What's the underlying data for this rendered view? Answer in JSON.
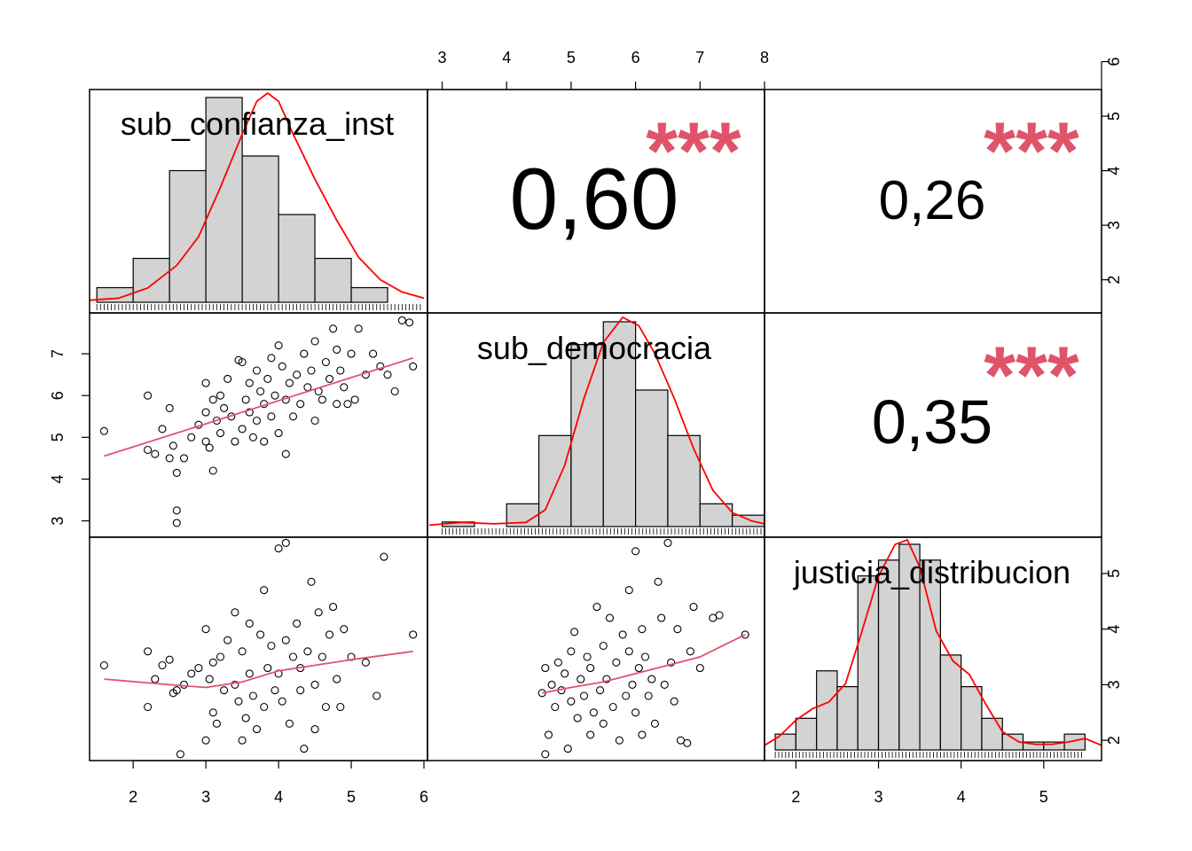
{
  "colors": {
    "density": "#ff0000",
    "stars": "#df536b",
    "smooth": "#df536b",
    "bar_fill": "#d3d3d3"
  },
  "chart_data": {
    "type": "scatter-matrix",
    "variables": [
      "sub_confianza_inst",
      "sub_democracia",
      "justicia_distribucion"
    ],
    "correlations": [
      {
        "pair": [
          "sub_confianza_inst",
          "sub_democracia"
        ],
        "label": "0,60",
        "stars": "***"
      },
      {
        "pair": [
          "sub_confianza_inst",
          "justicia_distribucion"
        ],
        "label": "0,26",
        "stars": "***"
      },
      {
        "pair": [
          "sub_democracia",
          "justicia_distribucion"
        ],
        "label": "0,35",
        "stars": "***"
      }
    ],
    "axes": {
      "sub_confianza_inst": {
        "range": [
          1.4,
          6.0
        ],
        "ticks": [
          "2",
          "3",
          "4",
          "5",
          "6"
        ]
      },
      "sub_democracia": {
        "range": [
          2.8,
          8.0
        ],
        "ticks": [
          "3",
          "4",
          "5",
          "6",
          "7",
          "8"
        ]
      },
      "justicia_distribucion": {
        "range": [
          1.62,
          5.7
        ],
        "ticks": [
          "2",
          "3",
          "4",
          "5"
        ]
      }
    },
    "histograms": {
      "sub_confianza_inst": {
        "breaks": [
          1.5,
          2.0,
          2.5,
          3.0,
          3.5,
          4.0,
          4.5,
          5.0,
          5.5,
          6.0
        ],
        "counts": [
          1,
          3,
          9,
          14,
          10,
          6,
          3,
          1,
          0
        ],
        "density": [
          [
            1.4,
            0.05
          ],
          [
            1.8,
            0.1
          ],
          [
            2.2,
            0.35
          ],
          [
            2.6,
            0.9
          ],
          [
            2.9,
            1.6
          ],
          [
            3.2,
            2.8
          ],
          [
            3.5,
            4.1
          ],
          [
            3.7,
            4.9
          ],
          [
            3.85,
            5.1
          ],
          [
            4.0,
            4.9
          ],
          [
            4.2,
            4.1
          ],
          [
            4.5,
            3.0
          ],
          [
            4.8,
            2.0
          ],
          [
            5.1,
            1.1
          ],
          [
            5.4,
            0.55
          ],
          [
            5.7,
            0.25
          ],
          [
            6.0,
            0.1
          ]
        ]
      },
      "sub_democracia": {
        "breaks": [
          3.0,
          3.5,
          4.0,
          4.5,
          5.0,
          5.5,
          6.0,
          6.5,
          7.0,
          7.5,
          8.0
        ],
        "counts": [
          0.2,
          0,
          1,
          4,
          8,
          9,
          6,
          4,
          1,
          0.5
        ],
        "density": [
          [
            2.8,
            0.05
          ],
          [
            3.3,
            0.15
          ],
          [
            3.8,
            0.1
          ],
          [
            4.3,
            0.15
          ],
          [
            4.6,
            0.6
          ],
          [
            4.9,
            2.2
          ],
          [
            5.2,
            4.6
          ],
          [
            5.5,
            6.6
          ],
          [
            5.8,
            7.5
          ],
          [
            6.05,
            7.2
          ],
          [
            6.3,
            6.2
          ],
          [
            6.6,
            4.6
          ],
          [
            6.9,
            2.8
          ],
          [
            7.2,
            1.3
          ],
          [
            7.5,
            0.5
          ],
          [
            7.8,
            0.2
          ],
          [
            8.0,
            0.1
          ]
        ]
      },
      "justicia_distribucion": {
        "breaks": [
          1.75,
          2.0,
          2.25,
          2.5,
          2.75,
          3.0,
          3.25,
          3.5,
          3.75,
          4.0,
          4.25,
          4.5,
          4.75,
          5.0,
          5.25,
          5.5
        ],
        "counts": [
          1,
          2,
          5,
          4,
          11,
          12,
          13,
          12,
          6,
          4,
          2,
          1,
          0.5,
          0.5,
          1
        ],
        "density": [
          [
            1.62,
            0.2
          ],
          [
            1.8,
            0.6
          ],
          [
            2.0,
            1.3
          ],
          [
            2.2,
            1.8
          ],
          [
            2.4,
            2.1
          ],
          [
            2.6,
            2.9
          ],
          [
            2.8,
            5.2
          ],
          [
            3.0,
            7.6
          ],
          [
            3.2,
            9.0
          ],
          [
            3.35,
            9.2
          ],
          [
            3.5,
            8.0
          ],
          [
            3.7,
            5.2
          ],
          [
            3.9,
            3.9
          ],
          [
            4.1,
            3.3
          ],
          [
            4.3,
            2.0
          ],
          [
            4.5,
            0.8
          ],
          [
            4.7,
            0.35
          ],
          [
            4.9,
            0.25
          ],
          [
            5.1,
            0.25
          ],
          [
            5.3,
            0.35
          ],
          [
            5.5,
            0.5
          ],
          [
            5.7,
            0.2
          ]
        ]
      }
    },
    "scatter": {
      "confianza_vs_democracia": [
        [
          1.6,
          5.15
        ],
        [
          2.2,
          6.0
        ],
        [
          2.2,
          4.7
        ],
        [
          2.3,
          4.6
        ],
        [
          2.4,
          5.2
        ],
        [
          2.5,
          4.5
        ],
        [
          2.5,
          5.7
        ],
        [
          2.55,
          4.8
        ],
        [
          2.6,
          4.15
        ],
        [
          2.6,
          3.25
        ],
        [
          2.6,
          2.95
        ],
        [
          2.7,
          4.5
        ],
        [
          2.8,
          5.0
        ],
        [
          2.9,
          5.3
        ],
        [
          3.0,
          4.9
        ],
        [
          3.0,
          5.6
        ],
        [
          3.0,
          6.3
        ],
        [
          3.05,
          4.75
        ],
        [
          3.1,
          5.9
        ],
        [
          3.1,
          4.2
        ],
        [
          3.15,
          5.4
        ],
        [
          3.2,
          5.1
        ],
        [
          3.2,
          6.0
        ],
        [
          3.25,
          5.7
        ],
        [
          3.3,
          6.4
        ],
        [
          3.35,
          5.5
        ],
        [
          3.4,
          4.9
        ],
        [
          3.45,
          6.85
        ],
        [
          3.5,
          6.8
        ],
        [
          3.5,
          5.2
        ],
        [
          3.55,
          5.9
        ],
        [
          3.6,
          6.3
        ],
        [
          3.6,
          5.6
        ],
        [
          3.65,
          5.0
        ],
        [
          3.7,
          6.6
        ],
        [
          3.7,
          5.4
        ],
        [
          3.75,
          6.1
        ],
        [
          3.8,
          5.8
        ],
        [
          3.8,
          4.9
        ],
        [
          3.85,
          6.4
        ],
        [
          3.9,
          5.5
        ],
        [
          3.9,
          6.9
        ],
        [
          3.95,
          6.0
        ],
        [
          4.0,
          5.1
        ],
        [
          4.0,
          7.2
        ],
        [
          4.05,
          6.7
        ],
        [
          4.1,
          5.9
        ],
        [
          4.1,
          4.6
        ],
        [
          4.15,
          6.3
        ],
        [
          4.2,
          5.5
        ],
        [
          4.25,
          6.5
        ],
        [
          4.3,
          5.8
        ],
        [
          4.35,
          7.0
        ],
        [
          4.4,
          6.2
        ],
        [
          4.45,
          6.6
        ],
        [
          4.5,
          5.4
        ],
        [
          4.5,
          7.3
        ],
        [
          4.55,
          6.1
        ],
        [
          4.6,
          5.9
        ],
        [
          4.65,
          6.8
        ],
        [
          4.7,
          6.4
        ],
        [
          4.75,
          7.6
        ],
        [
          4.8,
          5.8
        ],
        [
          4.8,
          7.1
        ],
        [
          4.85,
          6.6
        ],
        [
          4.9,
          6.2
        ],
        [
          4.95,
          5.8
        ],
        [
          5.0,
          7.0
        ],
        [
          5.05,
          5.9
        ],
        [
          5.1,
          7.6
        ],
        [
          5.2,
          6.5
        ],
        [
          5.3,
          7.0
        ],
        [
          5.4,
          6.7
        ],
        [
          5.5,
          6.5
        ],
        [
          5.6,
          6.1
        ],
        [
          5.7,
          7.8
        ],
        [
          5.8,
          7.75
        ],
        [
          5.85,
          6.7
        ]
      ],
      "confianza_vs_justicia": [
        [
          1.6,
          3.35
        ],
        [
          2.2,
          2.6
        ],
        [
          2.2,
          3.6
        ],
        [
          2.3,
          3.1
        ],
        [
          2.4,
          3.35
        ],
        [
          2.5,
          3.45
        ],
        [
          2.55,
          2.85
        ],
        [
          2.6,
          2.9
        ],
        [
          2.65,
          1.75
        ],
        [
          2.7,
          3.0
        ],
        [
          2.8,
          3.2
        ],
        [
          2.9,
          3.3
        ],
        [
          3.0,
          4.0
        ],
        [
          3.0,
          2.0
        ],
        [
          3.05,
          3.1
        ],
        [
          3.1,
          2.5
        ],
        [
          3.1,
          3.4
        ],
        [
          3.15,
          2.3
        ],
        [
          3.2,
          3.5
        ],
        [
          3.25,
          2.9
        ],
        [
          3.3,
          3.8
        ],
        [
          3.4,
          3.0
        ],
        [
          3.4,
          4.3
        ],
        [
          3.45,
          2.7
        ],
        [
          3.5,
          2.0
        ],
        [
          3.5,
          3.6
        ],
        [
          3.55,
          2.4
        ],
        [
          3.6,
          3.2
        ],
        [
          3.6,
          4.1
        ],
        [
          3.65,
          2.8
        ],
        [
          3.7,
          2.2
        ],
        [
          3.75,
          3.9
        ],
        [
          3.8,
          4.7
        ],
        [
          3.8,
          2.6
        ],
        [
          3.85,
          3.3
        ],
        [
          3.9,
          3.7
        ],
        [
          3.95,
          2.9
        ],
        [
          4.0,
          3.2
        ],
        [
          4.0,
          5.45
        ],
        [
          4.05,
          2.7
        ],
        [
          4.1,
          5.55
        ],
        [
          4.1,
          3.8
        ],
        [
          4.15,
          2.3
        ],
        [
          4.2,
          3.5
        ],
        [
          4.25,
          4.1
        ],
        [
          4.3,
          2.9
        ],
        [
          4.3,
          3.3
        ],
        [
          4.35,
          1.85
        ],
        [
          4.4,
          3.6
        ],
        [
          4.45,
          4.85
        ],
        [
          4.5,
          3.0
        ],
        [
          4.5,
          2.2
        ],
        [
          4.55,
          4.3
        ],
        [
          4.6,
          3.5
        ],
        [
          4.65,
          2.6
        ],
        [
          4.7,
          3.9
        ],
        [
          4.75,
          4.4
        ],
        [
          4.8,
          3.1
        ],
        [
          4.85,
          2.6
        ],
        [
          4.9,
          4.0
        ],
        [
          5.0,
          3.5
        ],
        [
          5.2,
          3.4
        ],
        [
          5.35,
          2.8
        ],
        [
          5.45,
          5.3
        ],
        [
          5.85,
          3.9
        ]
      ],
      "democracia_vs_justicia": [
        [
          4.55,
          2.85
        ],
        [
          4.6,
          1.75
        ],
        [
          4.6,
          3.3
        ],
        [
          4.65,
          2.1
        ],
        [
          4.7,
          3.0
        ],
        [
          4.75,
          2.6
        ],
        [
          4.8,
          3.4
        ],
        [
          4.85,
          2.9
        ],
        [
          4.9,
          3.2
        ],
        [
          4.95,
          1.85
        ],
        [
          5.0,
          3.6
        ],
        [
          5.0,
          2.7
        ],
        [
          5.05,
          3.95
        ],
        [
          5.1,
          2.4
        ],
        [
          5.15,
          3.1
        ],
        [
          5.2,
          2.8
        ],
        [
          5.25,
          3.5
        ],
        [
          5.3,
          2.1
        ],
        [
          5.3,
          3.3
        ],
        [
          5.35,
          2.5
        ],
        [
          5.4,
          4.4
        ],
        [
          5.45,
          2.9
        ],
        [
          5.5,
          3.7
        ],
        [
          5.5,
          2.3
        ],
        [
          5.55,
          3.1
        ],
        [
          5.6,
          4.2
        ],
        [
          5.65,
          2.6
        ],
        [
          5.7,
          3.4
        ],
        [
          5.75,
          2.0
        ],
        [
          5.8,
          3.9
        ],
        [
          5.85,
          2.8
        ],
        [
          5.9,
          3.6
        ],
        [
          5.9,
          4.7
        ],
        [
          5.95,
          3.0
        ],
        [
          6.0,
          5.4
        ],
        [
          6.0,
          2.5
        ],
        [
          6.05,
          3.3
        ],
        [
          6.1,
          4.0
        ],
        [
          6.1,
          2.1
        ],
        [
          6.15,
          3.5
        ],
        [
          6.2,
          2.8
        ],
        [
          6.25,
          3.1
        ],
        [
          6.3,
          2.3
        ],
        [
          6.35,
          4.85
        ],
        [
          6.4,
          4.2
        ],
        [
          6.45,
          3.0
        ],
        [
          6.5,
          5.55
        ],
        [
          6.55,
          3.4
        ],
        [
          6.6,
          2.7
        ],
        [
          6.65,
          4.0
        ],
        [
          6.7,
          2.0
        ],
        [
          6.8,
          1.95
        ],
        [
          6.85,
          3.6
        ],
        [
          6.9,
          4.4
        ],
        [
          7.0,
          3.3
        ],
        [
          7.2,
          4.2
        ],
        [
          7.3,
          4.25
        ],
        [
          7.7,
          3.9
        ]
      ]
    }
  }
}
